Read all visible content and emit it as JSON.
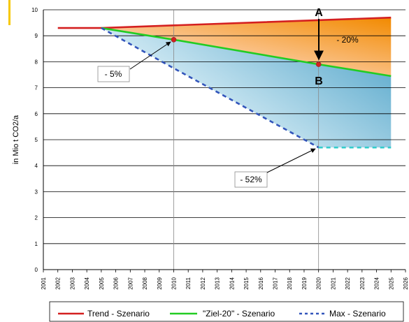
{
  "chart_data": {
    "type": "line",
    "ylabel": "in Mio t CO2/a",
    "xlabel": "",
    "xlim": [
      2001,
      2026
    ],
    "ylim": [
      0,
      10
    ],
    "yticks": [
      0,
      1,
      2,
      3,
      4,
      5,
      6,
      7,
      8,
      9,
      10
    ],
    "xticks": [
      2001,
      2002,
      2003,
      2004,
      2005,
      2006,
      2007,
      2008,
      2009,
      2010,
      2011,
      2012,
      2013,
      2014,
      2015,
      2016,
      2017,
      2018,
      2019,
      2020,
      2021,
      2022,
      2023,
      2024,
      2025,
      2026
    ],
    "grid": "horizontal",
    "legend_position": "bottom",
    "series": [
      {
        "name": "Trend - Szenario",
        "color": "#d42020",
        "style": "solid",
        "x": [
          2002,
          2005,
          2025
        ],
        "y": [
          9.3,
          9.3,
          9.7
        ]
      },
      {
        "name": "\"Ziel-20\" - Szenario",
        "color": "#22cc22",
        "style": "solid",
        "x": [
          2005,
          2010,
          2020,
          2025
        ],
        "y": [
          9.3,
          8.85,
          7.9,
          7.45
        ]
      },
      {
        "name": "Max - Szenario",
        "color": "#3355bb",
        "style": "dashed",
        "x": [
          2005,
          2010,
          2020
        ],
        "y": [
          9.3,
          7.75,
          4.7
        ]
      },
      {
        "name": "",
        "color": "#33cccc",
        "style": "dashed",
        "x": [
          2020,
          2025
        ],
        "y": [
          4.7,
          4.7
        ]
      }
    ],
    "vlines": [
      2010,
      2020
    ],
    "markers": [
      {
        "x": 2010,
        "y": 8.85,
        "color": "#d42020"
      },
      {
        "x": 2020,
        "y": 7.9,
        "color": "#d42020"
      }
    ],
    "annotations": {
      "label_a": "A",
      "label_b": "B",
      "reduction_20": "- 20%",
      "reduction_5": "- 5%",
      "reduction_52": "- 52%"
    }
  }
}
